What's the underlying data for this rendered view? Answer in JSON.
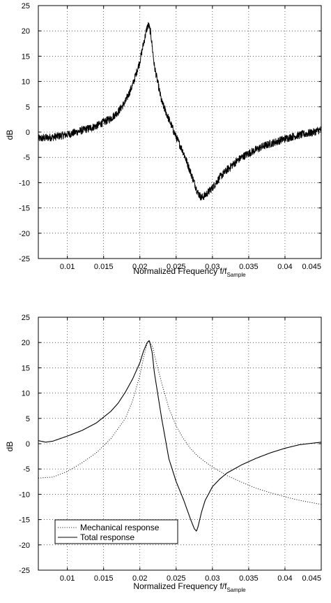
{
  "chart_data": [
    {
      "type": "line",
      "title": "",
      "xlabel": "Normalized Frequency f/f",
      "xlabel_sub": "Sample",
      "ylabel": "dB",
      "xlim": [
        0.006,
        0.045
      ],
      "ylim": [
        -25,
        25
      ],
      "xticks": [
        0.01,
        0.015,
        0.02,
        0.025,
        0.03,
        0.035,
        0.04,
        0.045
      ],
      "xtick_labels": [
        "0.01",
        "0.015",
        "0.02",
        "0.025",
        "0.03",
        "0.035",
        "0.04",
        "0.045"
      ],
      "yticks": [
        -25,
        -20,
        -15,
        -10,
        -5,
        0,
        5,
        10,
        15,
        20,
        25
      ],
      "ytick_labels": [
        "-25",
        "-20",
        "-15",
        "-10",
        "-5",
        "0",
        "5",
        "10",
        "15",
        "20",
        "25"
      ],
      "grid": true,
      "legend": null,
      "series": [
        {
          "style": "solid-noisy",
          "color": "#000000",
          "x": [
            0.006,
            0.008,
            0.01,
            0.012,
            0.014,
            0.016,
            0.017,
            0.018,
            0.019,
            0.02,
            0.0205,
            0.021,
            0.0212,
            0.0215,
            0.022,
            0.023,
            0.024,
            0.025,
            0.026,
            0.027,
            0.028,
            0.0285,
            0.029,
            0.03,
            0.031,
            0.032,
            0.033,
            0.034,
            0.035,
            0.036,
            0.037,
            0.038,
            0.039,
            0.04,
            0.041,
            0.042,
            0.043,
            0.044,
            0.045
          ],
          "values": [
            -1.3,
            -1.0,
            -0.5,
            0.3,
            1.2,
            2.7,
            4.0,
            6.0,
            9.3,
            14.0,
            17.5,
            20.7,
            21.2,
            19.5,
            13.0,
            6.0,
            2.5,
            -1.0,
            -4.0,
            -8.0,
            -12.0,
            -13.0,
            -12.5,
            -11.0,
            -9.0,
            -7.5,
            -6.2,
            -5.0,
            -4.2,
            -3.5,
            -2.8,
            -2.3,
            -1.8,
            -1.3,
            -0.9,
            -0.6,
            -0.3,
            0.0,
            0.5
          ]
        }
      ]
    },
    {
      "type": "line",
      "title": "",
      "xlabel": "Normalized Frequency f/f",
      "xlabel_sub": "Sample",
      "ylabel": "dB",
      "xlim": [
        0.006,
        0.045
      ],
      "ylim": [
        -25,
        25
      ],
      "xticks": [
        0.01,
        0.015,
        0.02,
        0.025,
        0.03,
        0.035,
        0.04,
        0.045
      ],
      "xtick_labels": [
        "0.01",
        "0.015",
        "0.02",
        "0.025",
        "0.03",
        "0.035",
        "0.04",
        "0.045"
      ],
      "yticks": [
        -25,
        -20,
        -15,
        -10,
        -5,
        0,
        5,
        10,
        15,
        20,
        25
      ],
      "ytick_labels": [
        "-25",
        "-20",
        "-15",
        "-10",
        "-5",
        "0",
        "5",
        "10",
        "15",
        "20",
        "25"
      ],
      "grid": true,
      "legend": "bottom-left",
      "series": [
        {
          "name": "Mechanical response",
          "style": "dotted",
          "color": "#000000",
          "x": [
            0.006,
            0.008,
            0.01,
            0.012,
            0.014,
            0.016,
            0.018,
            0.019,
            0.02,
            0.0205,
            0.021,
            0.0213,
            0.0218,
            0.022,
            0.023,
            0.024,
            0.025,
            0.026,
            0.027,
            0.028,
            0.029,
            0.03,
            0.032,
            0.034,
            0.036,
            0.038,
            0.04,
            0.042,
            0.045
          ],
          "values": [
            -6.8,
            -6.6,
            -5.5,
            -3.8,
            -1.8,
            1.0,
            5.0,
            8.5,
            13.5,
            17.0,
            19.8,
            20.3,
            19.0,
            17.5,
            12.0,
            7.0,
            3.5,
            1.0,
            -1.0,
            -2.5,
            -3.6,
            -4.6,
            -6.3,
            -7.6,
            -8.8,
            -9.7,
            -10.5,
            -11.2,
            -12.0
          ]
        },
        {
          "name": "Total response",
          "style": "solid",
          "color": "#000000",
          "x": [
            0.006,
            0.007,
            0.008,
            0.009,
            0.01,
            0.012,
            0.014,
            0.016,
            0.017,
            0.018,
            0.019,
            0.02,
            0.0205,
            0.021,
            0.0213,
            0.0217,
            0.022,
            0.023,
            0.024,
            0.025,
            0.026,
            0.027,
            0.0275,
            0.0278,
            0.028,
            0.0285,
            0.029,
            0.03,
            0.031,
            0.032,
            0.034,
            0.036,
            0.038,
            0.04,
            0.042,
            0.045
          ],
          "values": [
            0.6,
            0.3,
            0.5,
            1.0,
            1.5,
            2.6,
            4.1,
            6.4,
            8.0,
            10.2,
            12.8,
            16.0,
            18.3,
            20.0,
            20.4,
            18.0,
            14.0,
            5.0,
            -3.0,
            -7.5,
            -11.0,
            -15.0,
            -16.8,
            -17.3,
            -16.5,
            -13.5,
            -11.2,
            -8.5,
            -7.0,
            -5.8,
            -4.2,
            -2.9,
            -1.8,
            -0.9,
            -0.2,
            0.3
          ]
        }
      ]
    }
  ]
}
